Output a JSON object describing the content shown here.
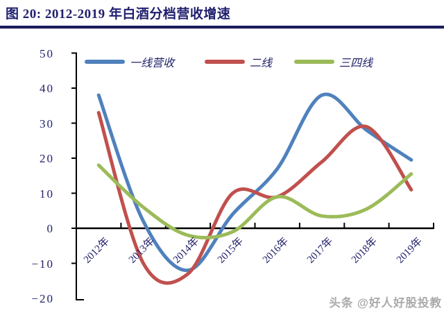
{
  "page": {
    "watermark": "头条 @好人好股投教"
  },
  "chart_data": {
    "type": "line",
    "title": "图 20: 2012-2019 年白酒分档营收增速",
    "categories": [
      "2012年",
      "2013年",
      "2014年",
      "2015年",
      "2016年",
      "2017年",
      "2018年",
      "2019年"
    ],
    "series": [
      {
        "name": "一线营收",
        "color": "#4F81BD",
        "values": [
          38,
          2,
          -12,
          4,
          17,
          38,
          28,
          19.5
        ]
      },
      {
        "name": "二线",
        "color": "#C0504D",
        "values": [
          33,
          -10,
          -13,
          10,
          9,
          19,
          29,
          11
        ]
      },
      {
        "name": "三四线",
        "color": "#9BBB59",
        "values": [
          18,
          6,
          -2,
          -1,
          9,
          3.5,
          5.5,
          15.5
        ]
      }
    ],
    "ylabel": "",
    "xlabel": "",
    "ylim": [
      -20,
      50
    ],
    "yticks": [
      50,
      40,
      30,
      20,
      10,
      0,
      -10,
      -20
    ],
    "grid": false,
    "smooth": true,
    "legend_position": "top",
    "axis_color": "#000000",
    "text_color": "#21216b",
    "unit": "%"
  }
}
